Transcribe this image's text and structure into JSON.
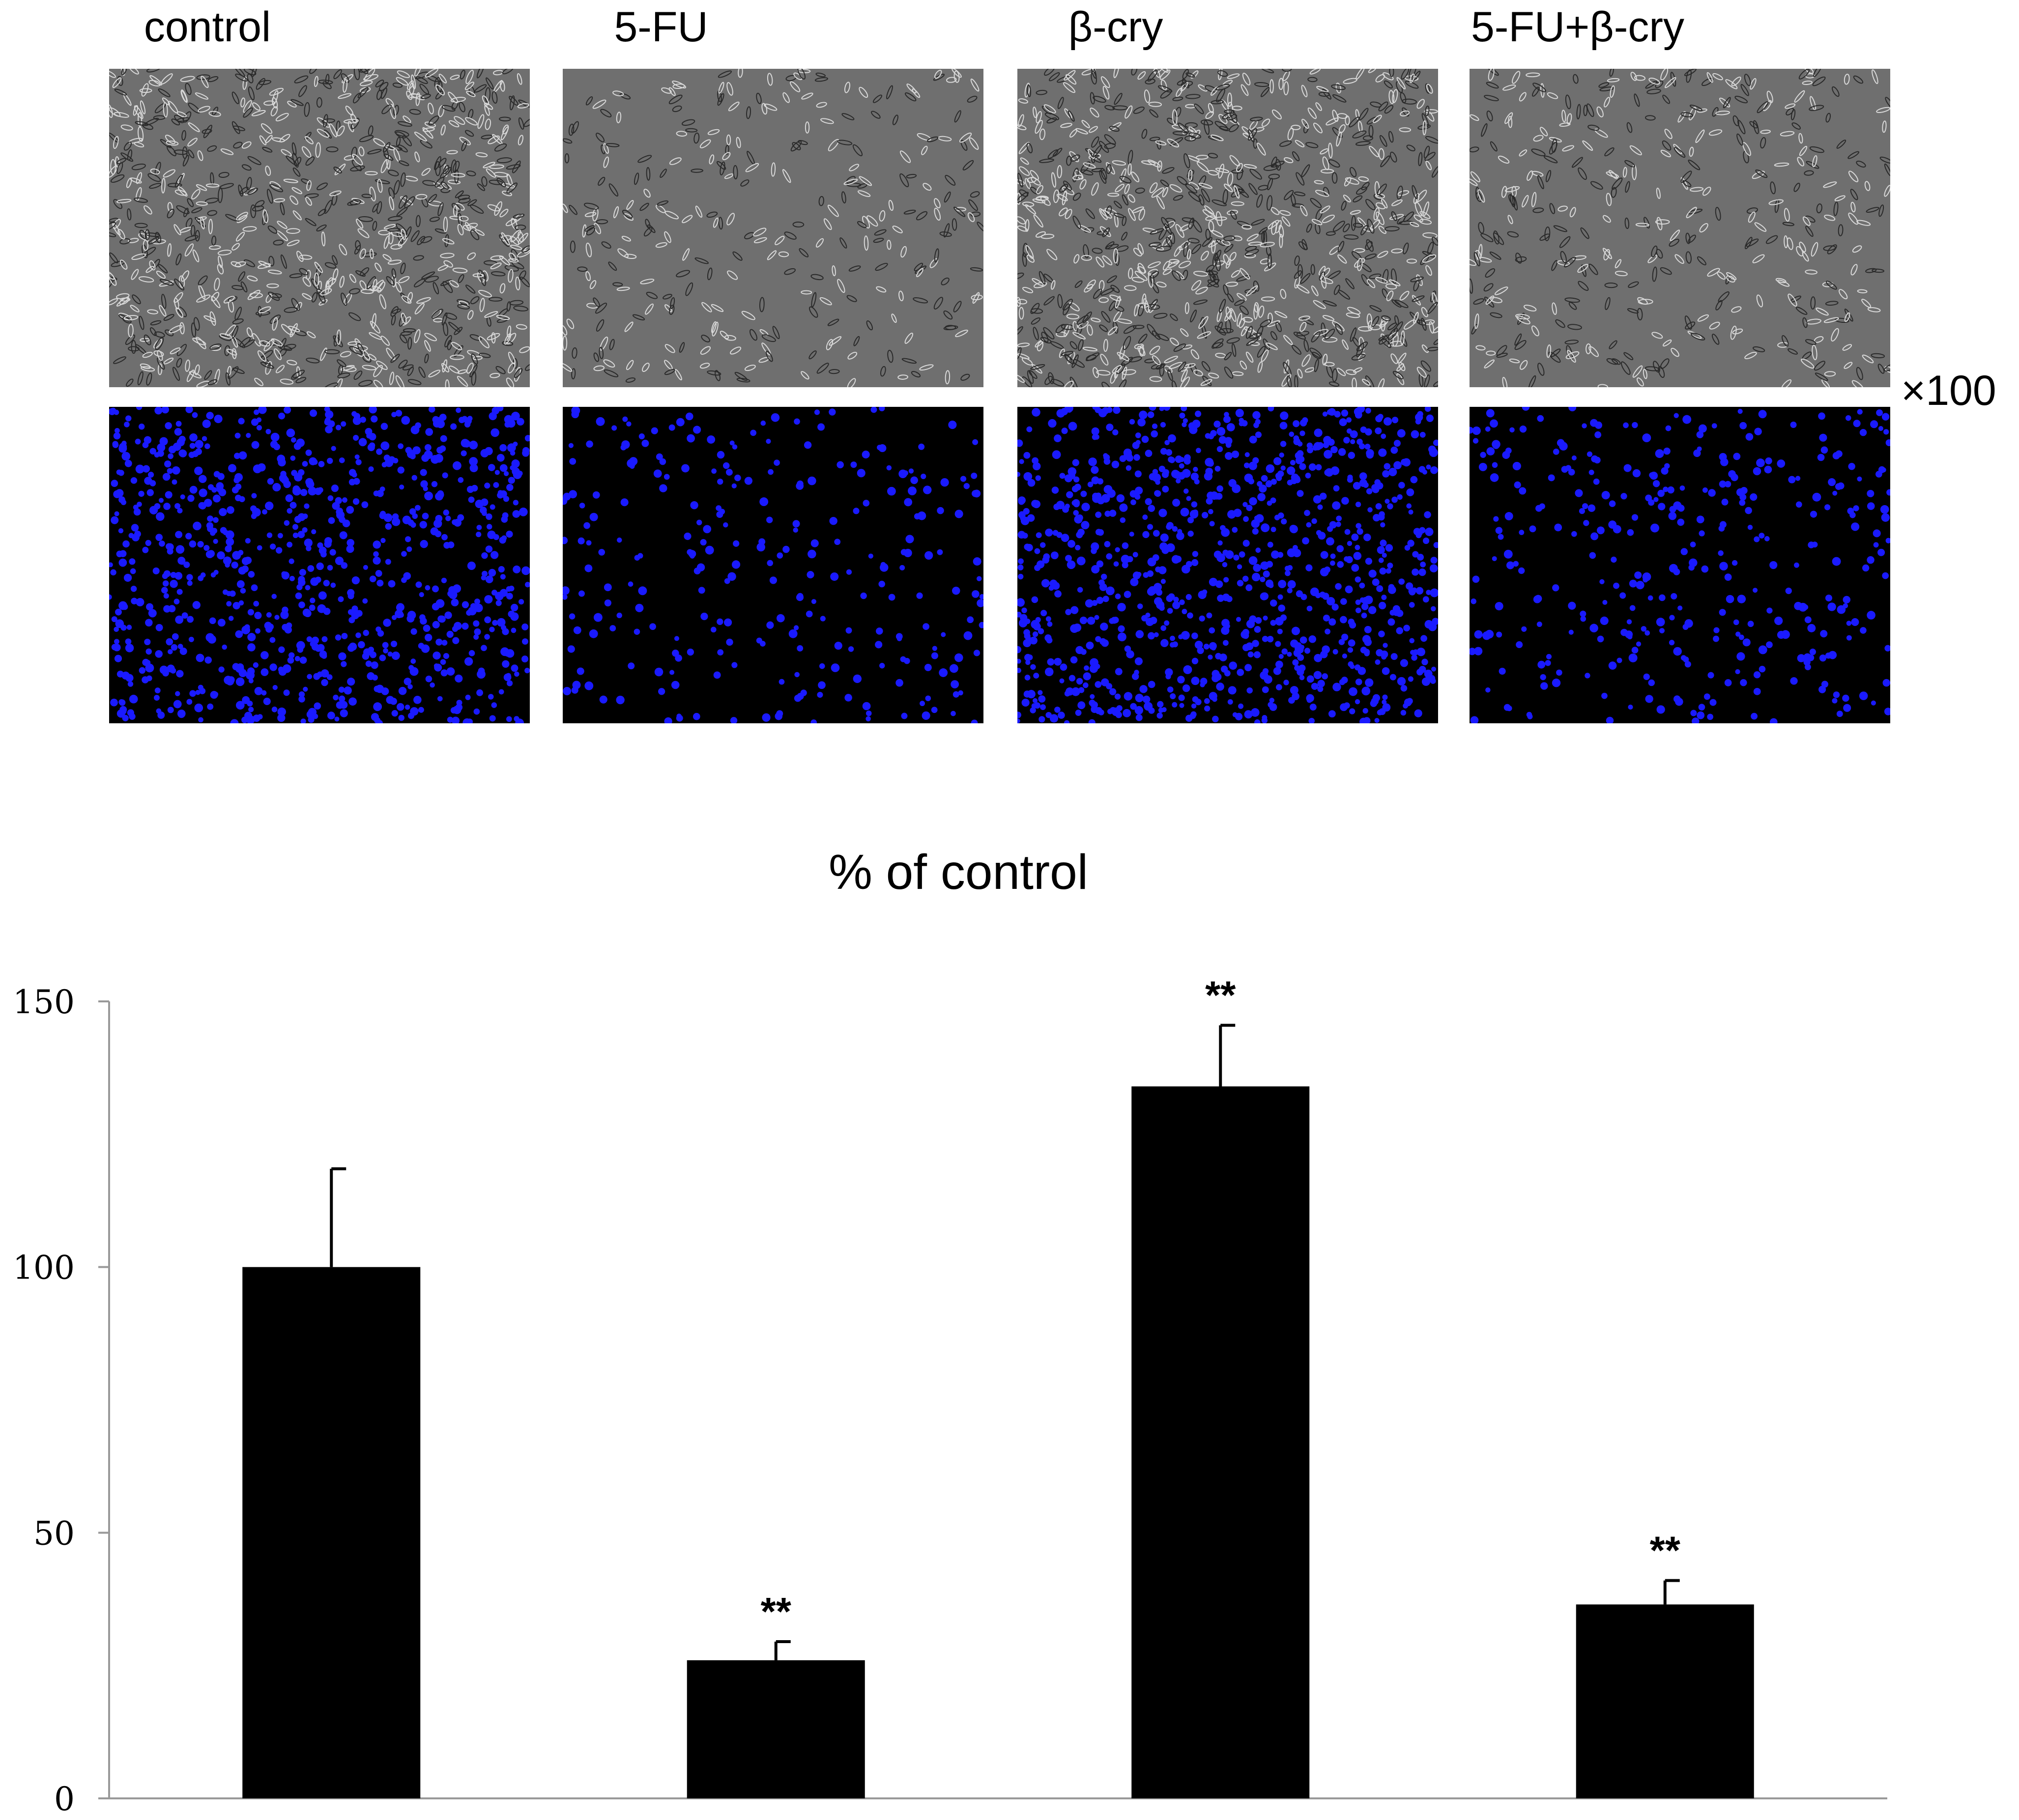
{
  "figure": {
    "column_labels": [
      "control",
      "5-FU",
      "β-cry",
      "5-FU+β-cry"
    ],
    "magnification_label": "×100",
    "panels": {
      "phase_contrast_icon": "phase-contrast-micrograph",
      "dapi_icon": "dapi-fluorescence-micrograph",
      "dapi_color": "#1a1aff",
      "phase_bg_color": "#6f6f6f"
    }
  },
  "chart_data": {
    "type": "bar",
    "title": "% of control",
    "xlabel": "",
    "ylabel": "",
    "categories": [
      "control",
      "5-FU",
      "β-cry",
      "5-FU+β-cry"
    ],
    "show_category_labels": false,
    "values": [
      100,
      26,
      134,
      36.5
    ],
    "errors": [
      18.5,
      3.5,
      11.5,
      4.5
    ],
    "annotations": [
      "",
      "**",
      "**",
      "**"
    ],
    "ylim": [
      0,
      150
    ],
    "yticks": [
      0,
      50,
      100,
      150
    ],
    "grid": false,
    "bar_color": "#000000",
    "axis_color": "#999999"
  }
}
